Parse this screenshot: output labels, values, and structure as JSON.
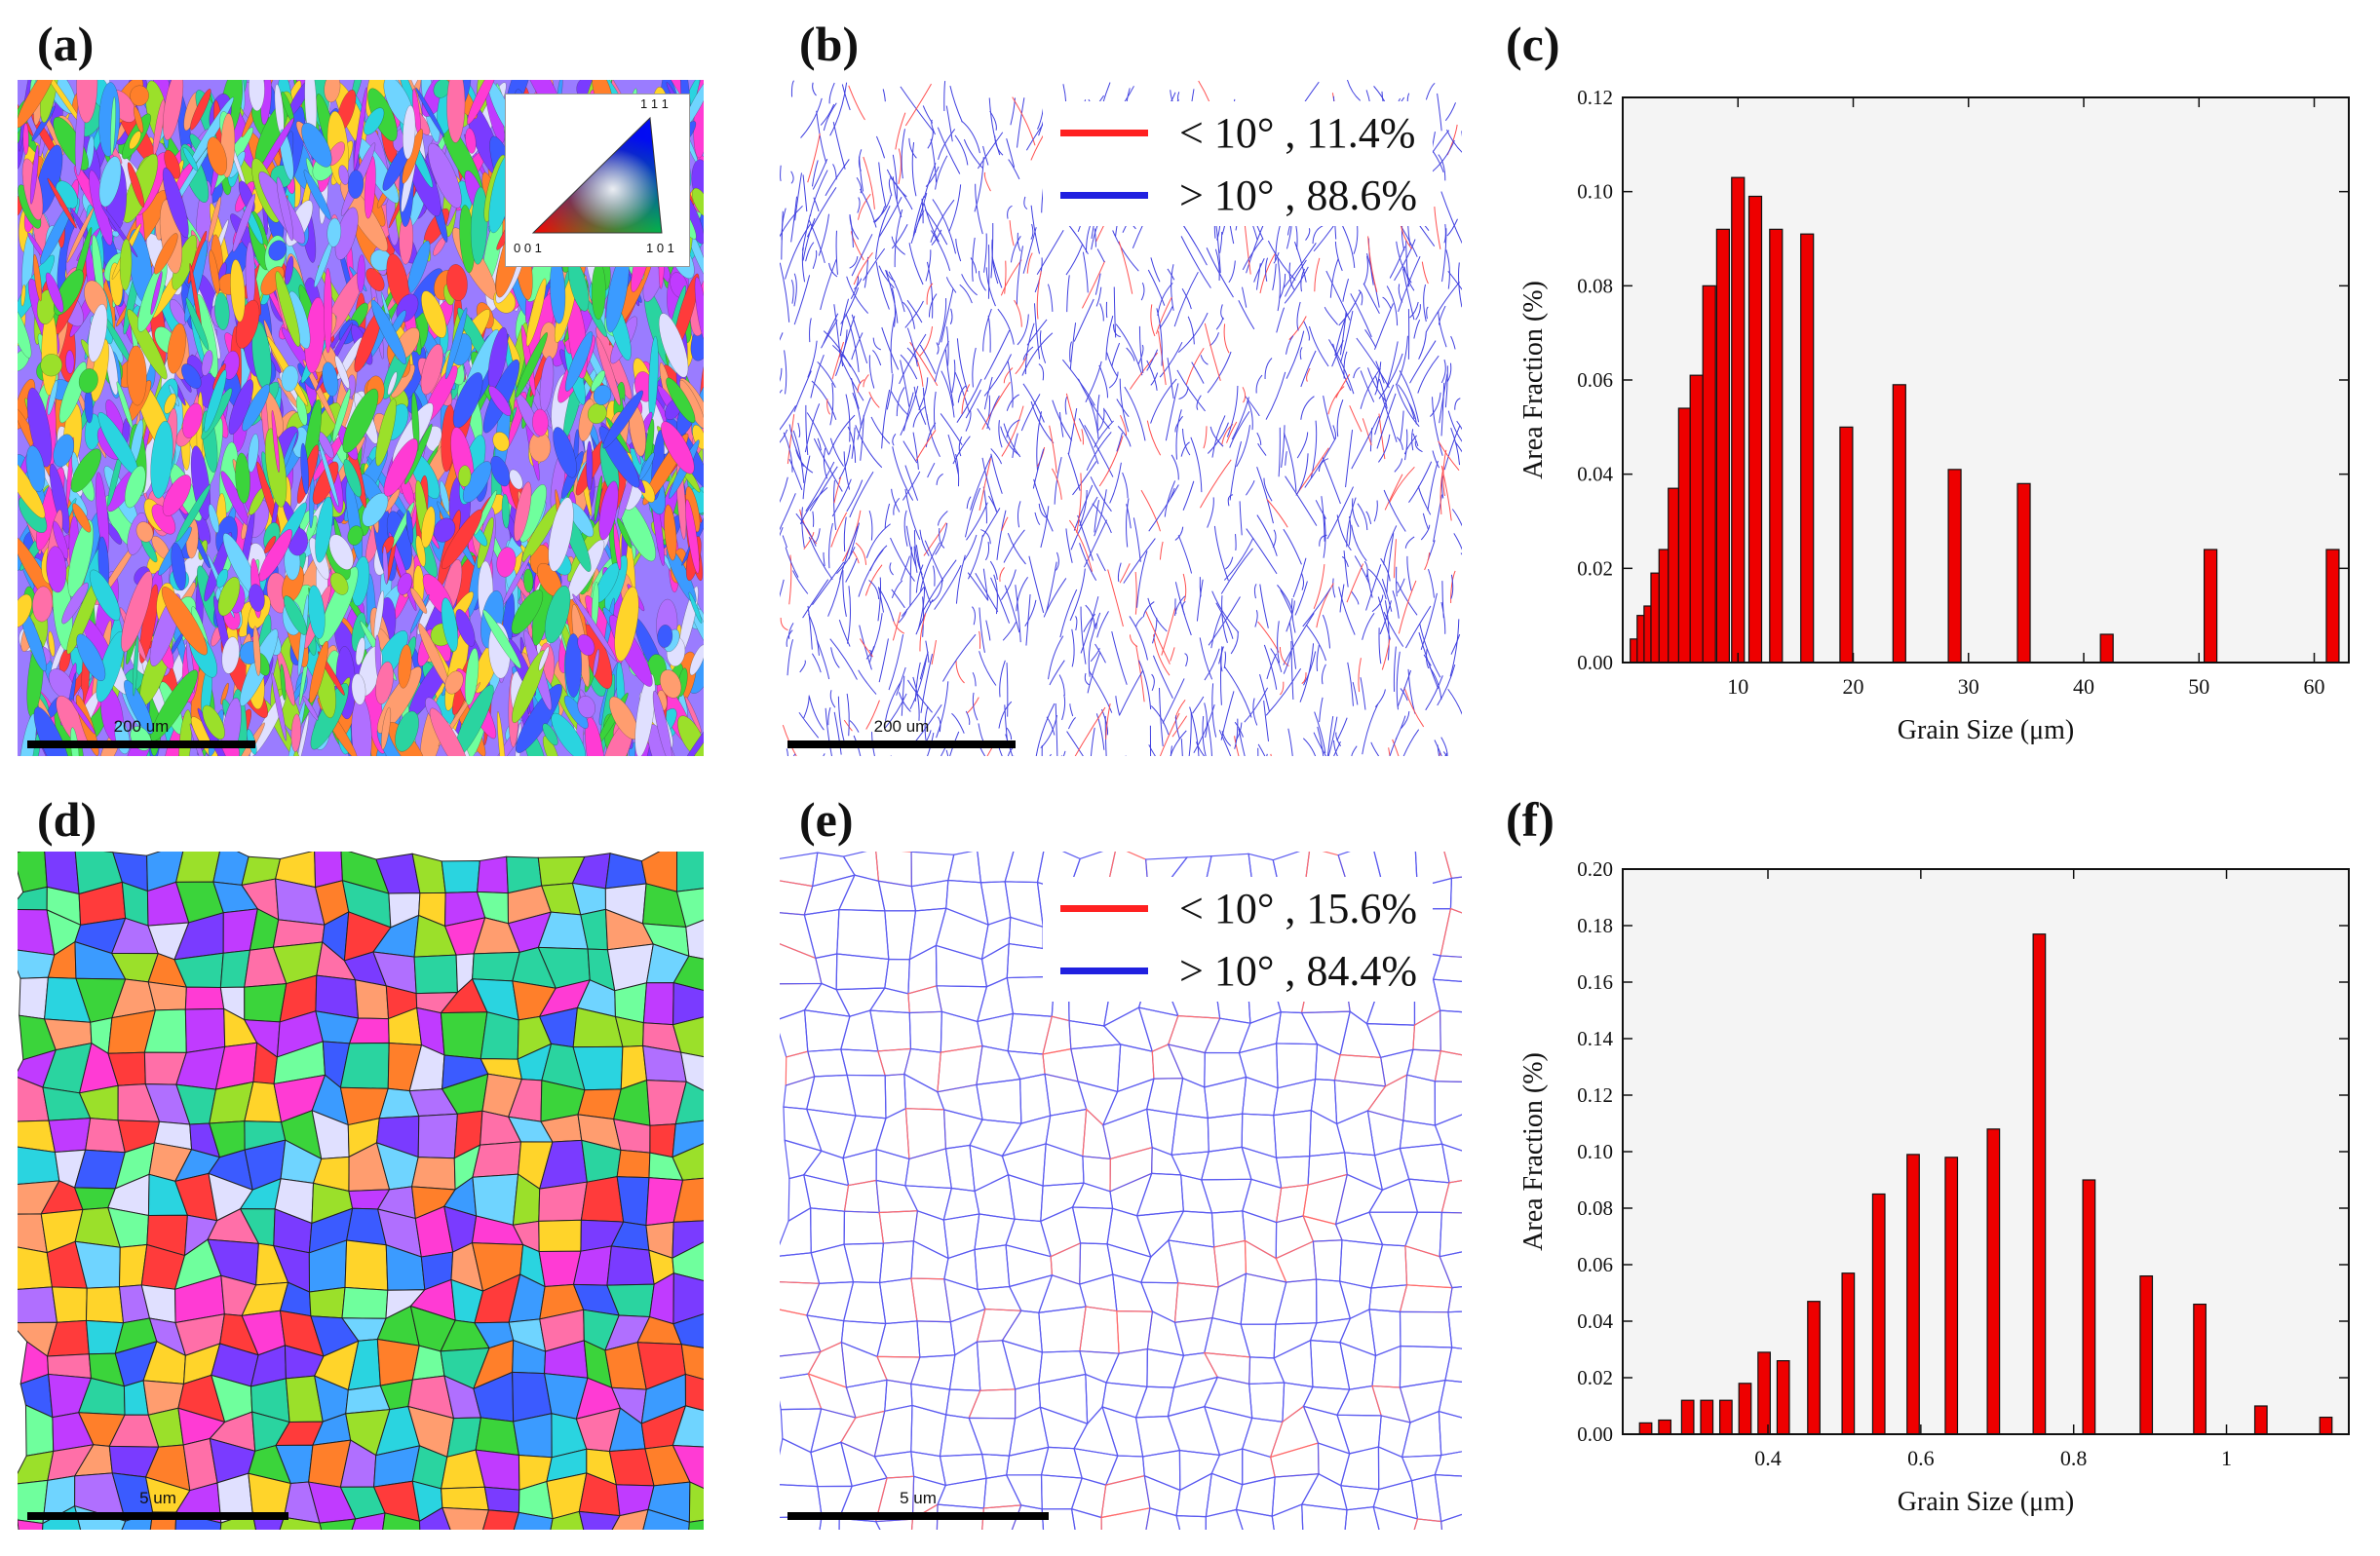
{
  "panels": {
    "a": {
      "label": "(a)",
      "scalebar": "200 um",
      "ipf": {
        "top": "1 1 1",
        "left": "0 0 1",
        "right": "1 0 1"
      }
    },
    "b": {
      "label": "(b)",
      "scalebar": "200 um",
      "legend": [
        {
          "color": "#ff2020",
          "text": "< 10°   , 11.4%"
        },
        {
          "color": "#2020e0",
          "text": "> 10°   , 88.6%"
        }
      ]
    },
    "c": {
      "label": "(c)"
    },
    "d": {
      "label": "(d)",
      "scalebar": "5 um"
    },
    "e": {
      "label": "(e)",
      "scalebar": "5 um",
      "legend": [
        {
          "color": "#ff2020",
          "text": "< 10°   , 15.6%"
        },
        {
          "color": "#2020e0",
          "text": "> 10°   , 84.4%"
        }
      ]
    },
    "f": {
      "label": "(f)"
    }
  },
  "chart_data": [
    {
      "type": "bar",
      "panel": "c",
      "xlabel": "Grain Size (μm)",
      "ylabel": "Area Fraction (%)",
      "xlim": [
        0,
        63
      ],
      "ylim": [
        0,
        0.12
      ],
      "xticks": [
        10,
        20,
        30,
        40,
        50,
        60
      ],
      "yticks": [
        0.0,
        0.02,
        0.04,
        0.06,
        0.08,
        0.1,
        0.12
      ],
      "bar_width": 1.1,
      "bar_color": "#ee0000",
      "x": [
        1.2,
        1.8,
        2.4,
        3.0,
        3.7,
        4.5,
        5.4,
        6.4,
        7.5,
        8.7,
        10.0,
        11.5,
        13.3,
        16.0,
        19.4,
        24.0,
        28.8,
        34.8,
        42.0,
        51.0,
        61.6
      ],
      "values": [
        0.005,
        0.01,
        0.012,
        0.019,
        0.024,
        0.037,
        0.054,
        0.061,
        0.08,
        0.092,
        0.103,
        0.099,
        0.092,
        0.091,
        0.05,
        0.059,
        0.041,
        0.038,
        0.006,
        0.024,
        0.024
      ]
    },
    {
      "type": "bar",
      "panel": "f",
      "xlabel": "Grain Size (μm)",
      "ylabel": "Area Fraction (%)",
      "xlim": [
        0.21,
        1.16
      ],
      "ylim": [
        0,
        0.2
      ],
      "xticks": [
        0.4,
        0.6,
        0.8,
        1.0
      ],
      "yticks": [
        0.0,
        0.02,
        0.04,
        0.06,
        0.08,
        0.1,
        0.12,
        0.14,
        0.16,
        0.18,
        0.2
      ],
      "bar_width": 0.016,
      "bar_color": "#ee0000",
      "x": [
        0.24,
        0.265,
        0.295,
        0.32,
        0.345,
        0.37,
        0.395,
        0.42,
        0.46,
        0.505,
        0.545,
        0.59,
        0.64,
        0.695,
        0.755,
        0.82,
        0.895,
        0.965,
        1.045,
        1.13
      ],
      "values": [
        0.004,
        0.005,
        0.012,
        0.012,
        0.012,
        0.018,
        0.029,
        0.026,
        0.047,
        0.057,
        0.085,
        0.099,
        0.098,
        0.108,
        0.177,
        0.09,
        0.056,
        0.046,
        0.01,
        0.006
      ]
    }
  ]
}
